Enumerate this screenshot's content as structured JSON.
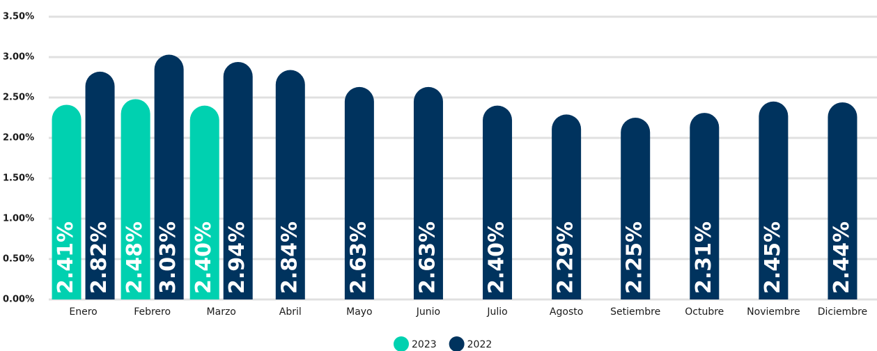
{
  "chart_data": {
    "type": "bar",
    "categories": [
      "Enero",
      "Febrero",
      "Marzo",
      "Abril",
      "Mayo",
      "Junio",
      "Julio",
      "Agosto",
      "Setiembre",
      "Octubre",
      "Noviembre",
      "Diciembre"
    ],
    "series": [
      {
        "name": "2023",
        "color": "#00d1b0",
        "values": [
          2.41,
          2.48,
          2.4,
          null,
          null,
          null,
          null,
          null,
          null,
          null,
          null,
          null
        ],
        "value_labels": [
          "2.41%",
          "2.48%",
          "2.40%",
          null,
          null,
          null,
          null,
          null,
          null,
          null,
          null,
          null
        ]
      },
      {
        "name": "2022",
        "color": "#00335e",
        "values": [
          2.82,
          3.03,
          2.94,
          2.84,
          2.63,
          2.63,
          2.4,
          2.29,
          2.25,
          2.31,
          2.45,
          2.44
        ],
        "value_labels": [
          "2.82%",
          "3.03%",
          "2.94%",
          "2.84%",
          "2.63%",
          "2.63%",
          "2.40%",
          "2.29%",
          "2.25%",
          "2.31%",
          "2.45%",
          "2.44%"
        ]
      }
    ],
    "ylim": [
      0,
      3.5
    ],
    "yticks": [
      {
        "value": 0,
        "label": "0.00%"
      },
      {
        "value": 0.5,
        "label": "0.50%"
      },
      {
        "value": 1,
        "label": "1.00%"
      },
      {
        "value": 1.5,
        "label": "1.50%"
      },
      {
        "value": 2,
        "label": "2.00%"
      },
      {
        "value": 2.5,
        "label": "2.50%"
      },
      {
        "value": 3,
        "label": "3.00%"
      },
      {
        "value": 3.5,
        "label": "3.50%"
      }
    ],
    "grid": true,
    "legend": "bottom"
  }
}
